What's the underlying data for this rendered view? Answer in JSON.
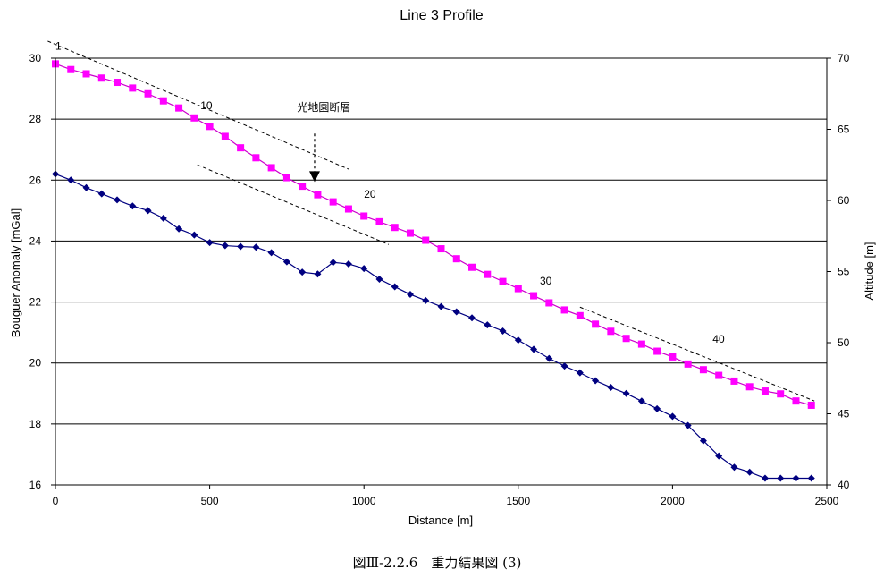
{
  "caption": "図Ⅲ-2.2.6　重力結果図 (3)",
  "chart_data": {
    "type": "line",
    "title": "Line 3 Profile",
    "xlabel": "Distance [m]",
    "ylabel_left": "Bouguer Anomaly [mGal]",
    "ylabel_right": "Altitude [m]",
    "xlim": [
      0,
      2500
    ],
    "ylim_left": [
      16,
      30
    ],
    "ylim_right": [
      40,
      70
    ],
    "x_ticks": [
      0,
      500,
      1000,
      1500,
      2000,
      2500
    ],
    "y_left_ticks": [
      16,
      18,
      20,
      22,
      24,
      26,
      28,
      30
    ],
    "y_right_ticks": [
      40,
      45,
      50,
      55,
      60,
      65,
      70
    ],
    "grid": "horizontal",
    "series": [
      {
        "axis": "left",
        "color": "#000080",
        "marker": "diamond",
        "x": [
          0,
          50,
          100,
          150,
          200,
          250,
          300,
          350,
          400,
          450,
          500,
          550,
          600,
          650,
          700,
          750,
          800,
          850,
          900,
          950,
          1000,
          1050,
          1100,
          1150,
          1200,
          1250,
          1300,
          1350,
          1400,
          1450,
          1500,
          1550,
          1600,
          1650,
          1700,
          1750,
          1800,
          1850,
          1900,
          1950,
          2000,
          2050,
          2100,
          2150,
          2200,
          2250,
          2300,
          2350,
          2400,
          2450
        ],
        "values": [
          26.2,
          26.0,
          25.75,
          25.55,
          25.35,
          25.15,
          25.0,
          24.75,
          24.4,
          24.2,
          23.95,
          23.85,
          23.82,
          23.8,
          23.62,
          23.32,
          22.98,
          22.92,
          23.3,
          23.25,
          23.1,
          22.75,
          22.5,
          22.25,
          22.05,
          21.85,
          21.68,
          21.48,
          21.25,
          21.05,
          20.75,
          20.45,
          20.15,
          19.9,
          19.68,
          19.42,
          19.2,
          19.0,
          18.75,
          18.5,
          18.25,
          17.95,
          17.45,
          16.95,
          16.58,
          16.42,
          16.22,
          16.22,
          16.22,
          16.22
        ]
      },
      {
        "axis": "right",
        "color": "#ff00ff",
        "marker": "square",
        "x": [
          0,
          50,
          100,
          150,
          200,
          250,
          300,
          350,
          400,
          450,
          500,
          550,
          600,
          650,
          700,
          750,
          800,
          850,
          900,
          950,
          1000,
          1050,
          1100,
          1150,
          1200,
          1250,
          1300,
          1350,
          1400,
          1450,
          1500,
          1550,
          1600,
          1650,
          1700,
          1750,
          1800,
          1850,
          1900,
          1950,
          2000,
          2050,
          2100,
          2150,
          2200,
          2250,
          2300,
          2350,
          2400,
          2450
        ],
        "values": [
          69.6,
          69.2,
          68.9,
          68.6,
          68.3,
          67.9,
          67.5,
          67.0,
          66.5,
          65.8,
          65.2,
          64.5,
          63.7,
          63.0,
          62.3,
          61.6,
          61.0,
          60.4,
          59.9,
          59.4,
          58.9,
          58.5,
          58.1,
          57.7,
          57.2,
          56.6,
          55.9,
          55.3,
          54.8,
          54.3,
          53.8,
          53.3,
          52.8,
          52.3,
          51.9,
          51.3,
          50.8,
          50.3,
          49.9,
          49.4,
          49.0,
          48.5,
          48.1,
          47.7,
          47.3,
          46.9,
          46.6,
          46.4,
          45.9,
          45.6
        ]
      }
    ],
    "point_labels": [
      {
        "text": "1",
        "x": 0,
        "axis": "right",
        "y": 70.6
      },
      {
        "text": "10",
        "x": 470,
        "axis": "right",
        "y": 66.4
      },
      {
        "text": "20",
        "x": 1000,
        "axis": "right",
        "y": 60.2
      },
      {
        "text": "30",
        "x": 1570,
        "axis": "right",
        "y": 54.1
      },
      {
        "text": "40",
        "x": 2130,
        "axis": "right",
        "y": 50.0
      }
    ],
    "fault_label": "光地園断層",
    "fault_label_pos": {
      "x": 870,
      "axis": "right",
      "y": 66.3
    },
    "fault_arrow": {
      "x": 840,
      "axis": "right",
      "y_from": 64.7,
      "y_to": 61.3
    },
    "trend_lines": [
      {
        "axis": "right",
        "x1": -25,
        "y1": 71.2,
        "x2": 950,
        "y2": 62.2
      },
      {
        "axis": "right",
        "x1": 460,
        "y1": 62.5,
        "x2": 1080,
        "y2": 56.9
      },
      {
        "axis": "right",
        "x1": 1700,
        "y1": 52.5,
        "x2": 2460,
        "y2": 45.9
      }
    ]
  }
}
